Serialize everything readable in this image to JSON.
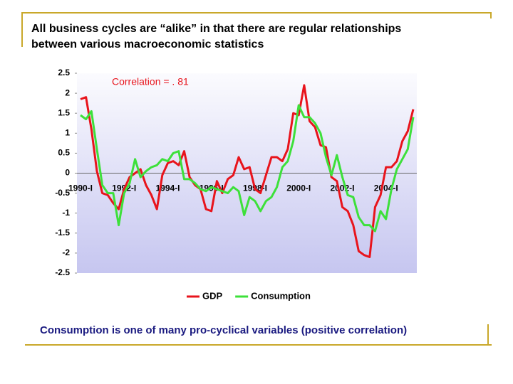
{
  "slide": {
    "title_lines": [
      "All business cycles are “alike” in that there are regular relationships",
      "between various macroeconomic statistics"
    ],
    "footer": "Consumption is one of many pro-cyclical variables (positive correlation)"
  },
  "chart_data": {
    "type": "line",
    "annotation": "Correlation = . 81",
    "categories": [
      "1990-I",
      null,
      null,
      null,
      null,
      null,
      null,
      null,
      "1992-I",
      null,
      null,
      null,
      null,
      null,
      null,
      null,
      "1994-I",
      null,
      null,
      null,
      null,
      null,
      null,
      null,
      "1996-I",
      null,
      null,
      null,
      null,
      null,
      null,
      null,
      "1998-I",
      null,
      null,
      null,
      null,
      null,
      null,
      null,
      "2000-I",
      null,
      null,
      null,
      null,
      null,
      null,
      null,
      "2002-I",
      null,
      null,
      null,
      null,
      null,
      null,
      null,
      "2004-I",
      null,
      null,
      null,
      null,
      null
    ],
    "series": [
      {
        "name": "GDP",
        "color": "#e8141c",
        "values": [
          1.85,
          1.9,
          1.1,
          0.05,
          -0.5,
          -0.55,
          -0.75,
          -0.9,
          -0.4,
          -0.1,
          0,
          0.1,
          -0.3,
          -0.55,
          -0.9,
          -0.05,
          0.25,
          0.3,
          0.2,
          0.55,
          -0.1,
          -0.3,
          -0.4,
          -0.9,
          -0.95,
          -0.2,
          -0.5,
          -0.15,
          -0.05,
          0.4,
          0.1,
          0.15,
          -0.4,
          -0.5,
          -0.05,
          0.4,
          0.4,
          0.3,
          0.6,
          1.5,
          1.45,
          2.2,
          1.3,
          1.15,
          0.7,
          0.65,
          -0.1,
          -0.2,
          -0.85,
          -0.95,
          -1.3,
          -1.95,
          -2.05,
          -2.1,
          -0.85,
          -0.55,
          0.15,
          0.15,
          0.3,
          0.8,
          1.05,
          1.6
        ]
      },
      {
        "name": "Consumption",
        "color": "#3de03a",
        "values": [
          1.45,
          1.35,
          1.55,
          0.6,
          -0.3,
          -0.5,
          -0.5,
          -1.3,
          -0.5,
          -0.25,
          0.35,
          -0.1,
          0.05,
          0.15,
          0.2,
          0.35,
          0.3,
          0.5,
          0.55,
          -0.15,
          -0.15,
          -0.25,
          -0.4,
          -0.45,
          -0.35,
          -0.4,
          -0.45,
          -0.5,
          -0.35,
          -0.45,
          -1.05,
          -0.6,
          -0.7,
          -0.95,
          -0.7,
          -0.6,
          -0.35,
          0.15,
          0.3,
          0.8,
          1.7,
          1.4,
          1.4,
          1.25,
          1.0,
          0.4,
          -0.05,
          0.45,
          -0.1,
          -0.55,
          -0.6,
          -1.1,
          -1.3,
          -1.3,
          -1.45,
          -0.95,
          -1.15,
          -0.4,
          0.1,
          0.35,
          0.6,
          1.4
        ]
      }
    ],
    "ylim": [
      -2.5,
      2.5
    ],
    "yticks": [
      -2.5,
      -2,
      -1.5,
      -1,
      -0.5,
      0,
      0.5,
      1,
      1.5,
      2,
      2.5
    ],
    "legend": "bottom"
  }
}
